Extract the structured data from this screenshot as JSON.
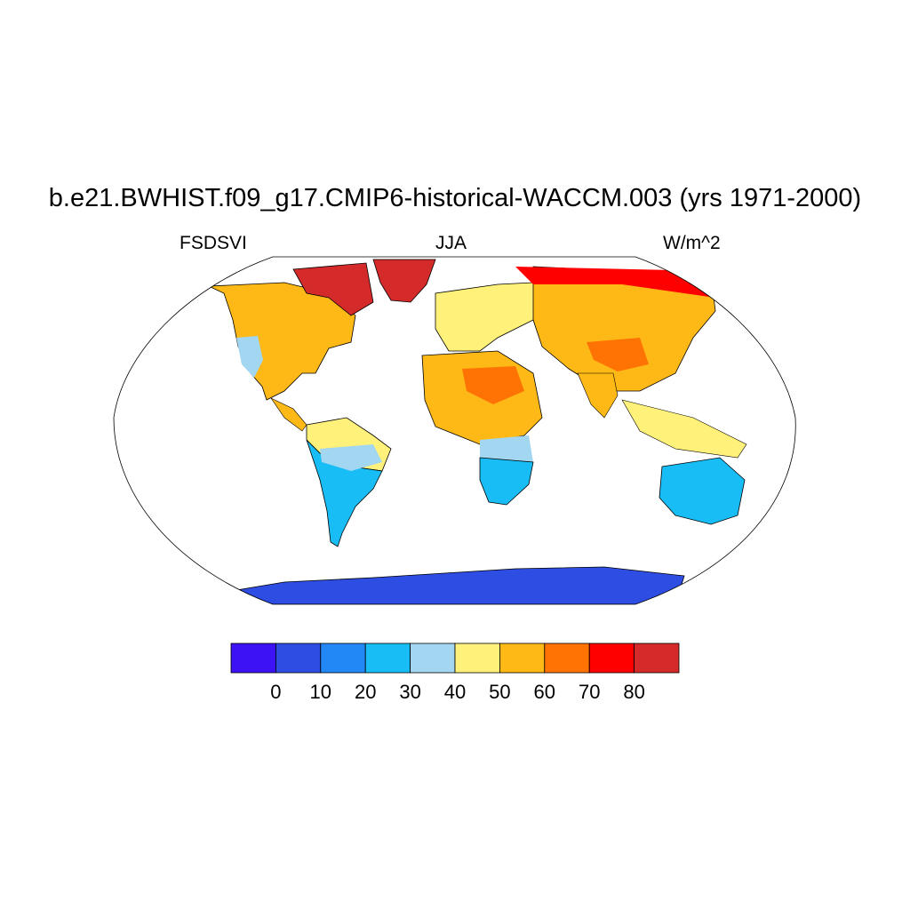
{
  "title": "b.e21.BWHIST.f09_g17.CMIP6-historical-WACCM.003 (yrs 1971-2000)",
  "left_label": "FSDSVI",
  "center_label": "JJA",
  "right_label": "W/m^2",
  "projection": "robinson",
  "colors": {
    "land_fill_default": "#fff17a",
    "ocean": "#ffffff",
    "coast": "#000000"
  },
  "colorbar": {
    "colors": [
      "#3d12f5",
      "#2e4de3",
      "#2288f5",
      "#18bdf5",
      "#a3d6f0",
      "#fff17a",
      "#ffb916",
      "#ff7305",
      "#ff0000",
      "#d42a2a"
    ],
    "labels": [
      "0",
      "10",
      "20",
      "30",
      "40",
      "50",
      "60",
      "70",
      "80"
    ]
  },
  "regions": [
    {
      "name": "north-america",
      "color": "#ffb916"
    },
    {
      "name": "greenland",
      "color": "#d42a2a"
    },
    {
      "name": "canadian-arctic",
      "color": "#d42a2a"
    },
    {
      "name": "western-us",
      "color": "#a3d6f0"
    },
    {
      "name": "central-america",
      "color": "#ffb916"
    },
    {
      "name": "south-america-north",
      "color": "#fff17a"
    },
    {
      "name": "south-america-south",
      "color": "#18bdf5"
    },
    {
      "name": "brazil-band",
      "color": "#a3d6f0"
    },
    {
      "name": "europe",
      "color": "#fff17a"
    },
    {
      "name": "north-africa",
      "color": "#ffb916"
    },
    {
      "name": "sahara-core",
      "color": "#ff7305"
    },
    {
      "name": "southern-africa",
      "color": "#18bdf5"
    },
    {
      "name": "africa-band",
      "color": "#a3d6f0"
    },
    {
      "name": "siberia",
      "color": "#ffb916"
    },
    {
      "name": "arctic-russia",
      "color": "#ff0000"
    },
    {
      "name": "tibet",
      "color": "#ff7305"
    },
    {
      "name": "india",
      "color": "#ffb916"
    },
    {
      "name": "southeast-asia",
      "color": "#fff17a"
    },
    {
      "name": "australia",
      "color": "#18bdf5"
    },
    {
      "name": "antarctica",
      "color": "#2e4de3"
    }
  ]
}
